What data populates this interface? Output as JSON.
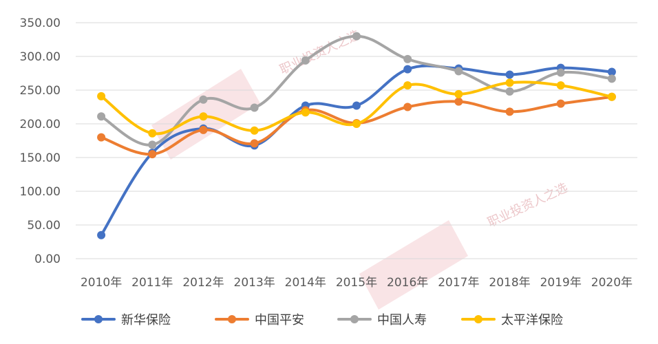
{
  "chart_data": {
    "type": "line",
    "title": "",
    "xlabel": "",
    "ylabel": "",
    "categories": [
      "2010年",
      "2011年",
      "2012年",
      "2013年",
      "2014年",
      "2015年",
      "2016年",
      "2017年",
      "2018年",
      "2019年",
      "2020年"
    ],
    "ylim": [
      0,
      350
    ],
    "yticks": [
      "0.00",
      "50.00",
      "100.00",
      "150.00",
      "200.00",
      "250.00",
      "300.00",
      "350.00"
    ],
    "grid": true,
    "legend_position": "bottom",
    "series": [
      {
        "name": "新华保险",
        "color": "#4472c4",
        "values": [
          35,
          157,
          193,
          168,
          227,
          227,
          281,
          282,
          273,
          283,
          277
        ]
      },
      {
        "name": "中国平安",
        "color": "#ed7d31",
        "values": [
          180,
          155,
          191,
          171,
          220,
          201,
          225,
          233,
          218,
          230,
          240
        ]
      },
      {
        "name": "中国人寿",
        "color": "#a5a5a5",
        "values": [
          211,
          169,
          236,
          224,
          294,
          330,
          296,
          278,
          248,
          276,
          267
        ]
      },
      {
        "name": "太平洋保险",
        "color": "#ffc000",
        "values": [
          241,
          186,
          211,
          190,
          217,
          200,
          257,
          244,
          261,
          257,
          240
        ]
      }
    ]
  },
  "watermark": {
    "text_1": "职业投资人之选",
    "text_2": "职业投资人之选"
  }
}
